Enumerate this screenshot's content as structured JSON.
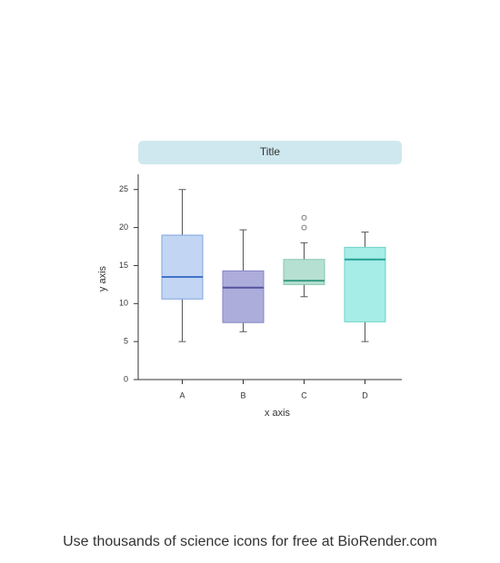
{
  "chart_data": {
    "type": "box",
    "title": "Title",
    "x_label": "x axis",
    "y_label": "y axis",
    "categories": [
      "A",
      "B",
      "C",
      "D"
    ],
    "boxes": [
      {
        "min": 5,
        "q1": 10.6,
        "median": 13.5,
        "q3": 19,
        "max": 25,
        "color": "#c2d5f3",
        "edge_color": "#7ea5df",
        "median_color": "#3f73c8"
      },
      {
        "min": 6.3,
        "q1": 7.5,
        "median": 12.1,
        "q3": 14.3,
        "max": 19.7,
        "color": "#adaddb",
        "edge_color": "#8483c6",
        "median_color": "#55539f"
      },
      {
        "min": 10.9,
        "q1": 12.5,
        "median": 13,
        "q3": 15.8,
        "max": 18,
        "outliers": [
          20,
          21.3
        ],
        "color": "#b6e0d2",
        "edge_color": "#83c6b0",
        "median_color": "#3a9c82"
      },
      {
        "min": 5,
        "q1": 7.6,
        "median": 15.8,
        "q3": 17.4,
        "max": 19.4,
        "color": "#a6ede7",
        "edge_color": "#6fd2c8",
        "median_color": "#25a196"
      }
    ],
    "ylim": [
      0,
      27
    ],
    "yticks": [
      0,
      5,
      10,
      15,
      20,
      25
    ]
  },
  "footer": "Use thousands of science icons for free at BioRender.com"
}
